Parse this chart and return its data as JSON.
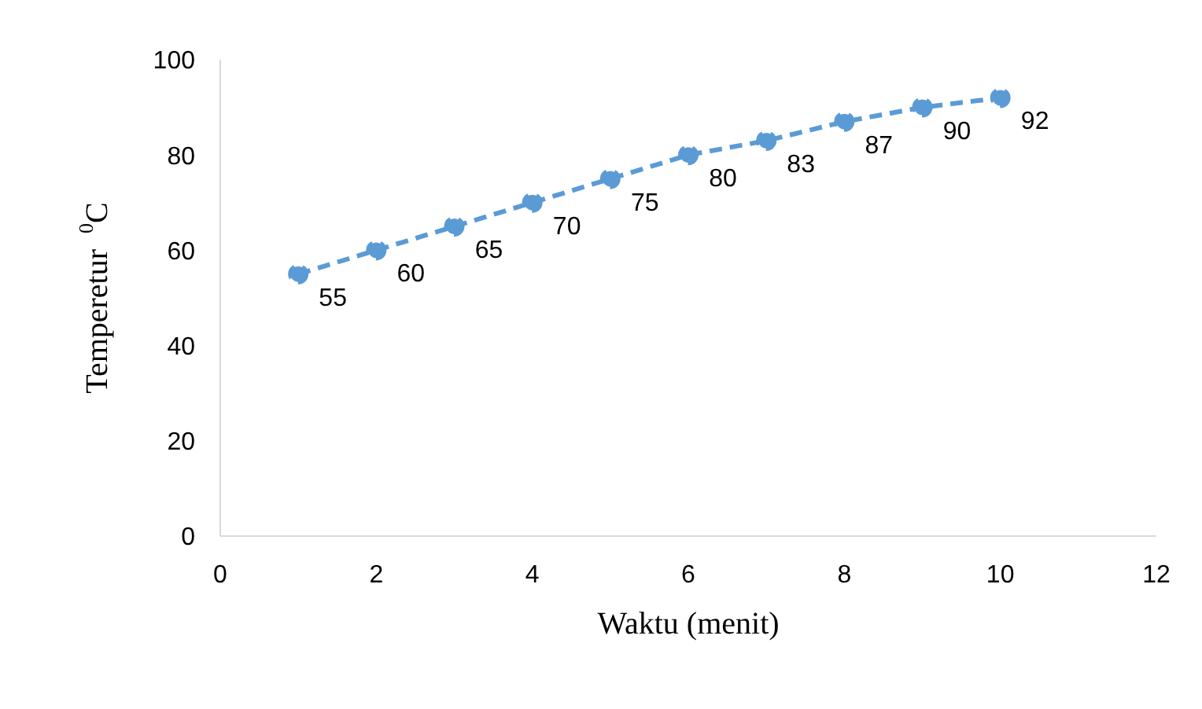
{
  "chart_data": {
    "type": "line",
    "xlabel": "Waktu (menit)",
    "ylabel": "Temperetur  $^{0}$C",
    "x": [
      1,
      2,
      3,
      4,
      5,
      6,
      7,
      8,
      9,
      10
    ],
    "series": [
      {
        "color": "#5b9bd5",
        "values": [
          55,
          60,
          65,
          70,
          75,
          80,
          83,
          87,
          90,
          92
        ]
      }
    ],
    "xlim": [
      0,
      12
    ],
    "xticks": [
      0,
      2,
      4,
      6,
      8,
      10,
      12
    ],
    "ylim": [
      0,
      100
    ],
    "yticks": [
      0,
      20,
      40,
      60,
      80,
      100
    ],
    "grid": false,
    "legend": false,
    "marker": "circle",
    "line_style": "dashed",
    "data_labels": true
  }
}
